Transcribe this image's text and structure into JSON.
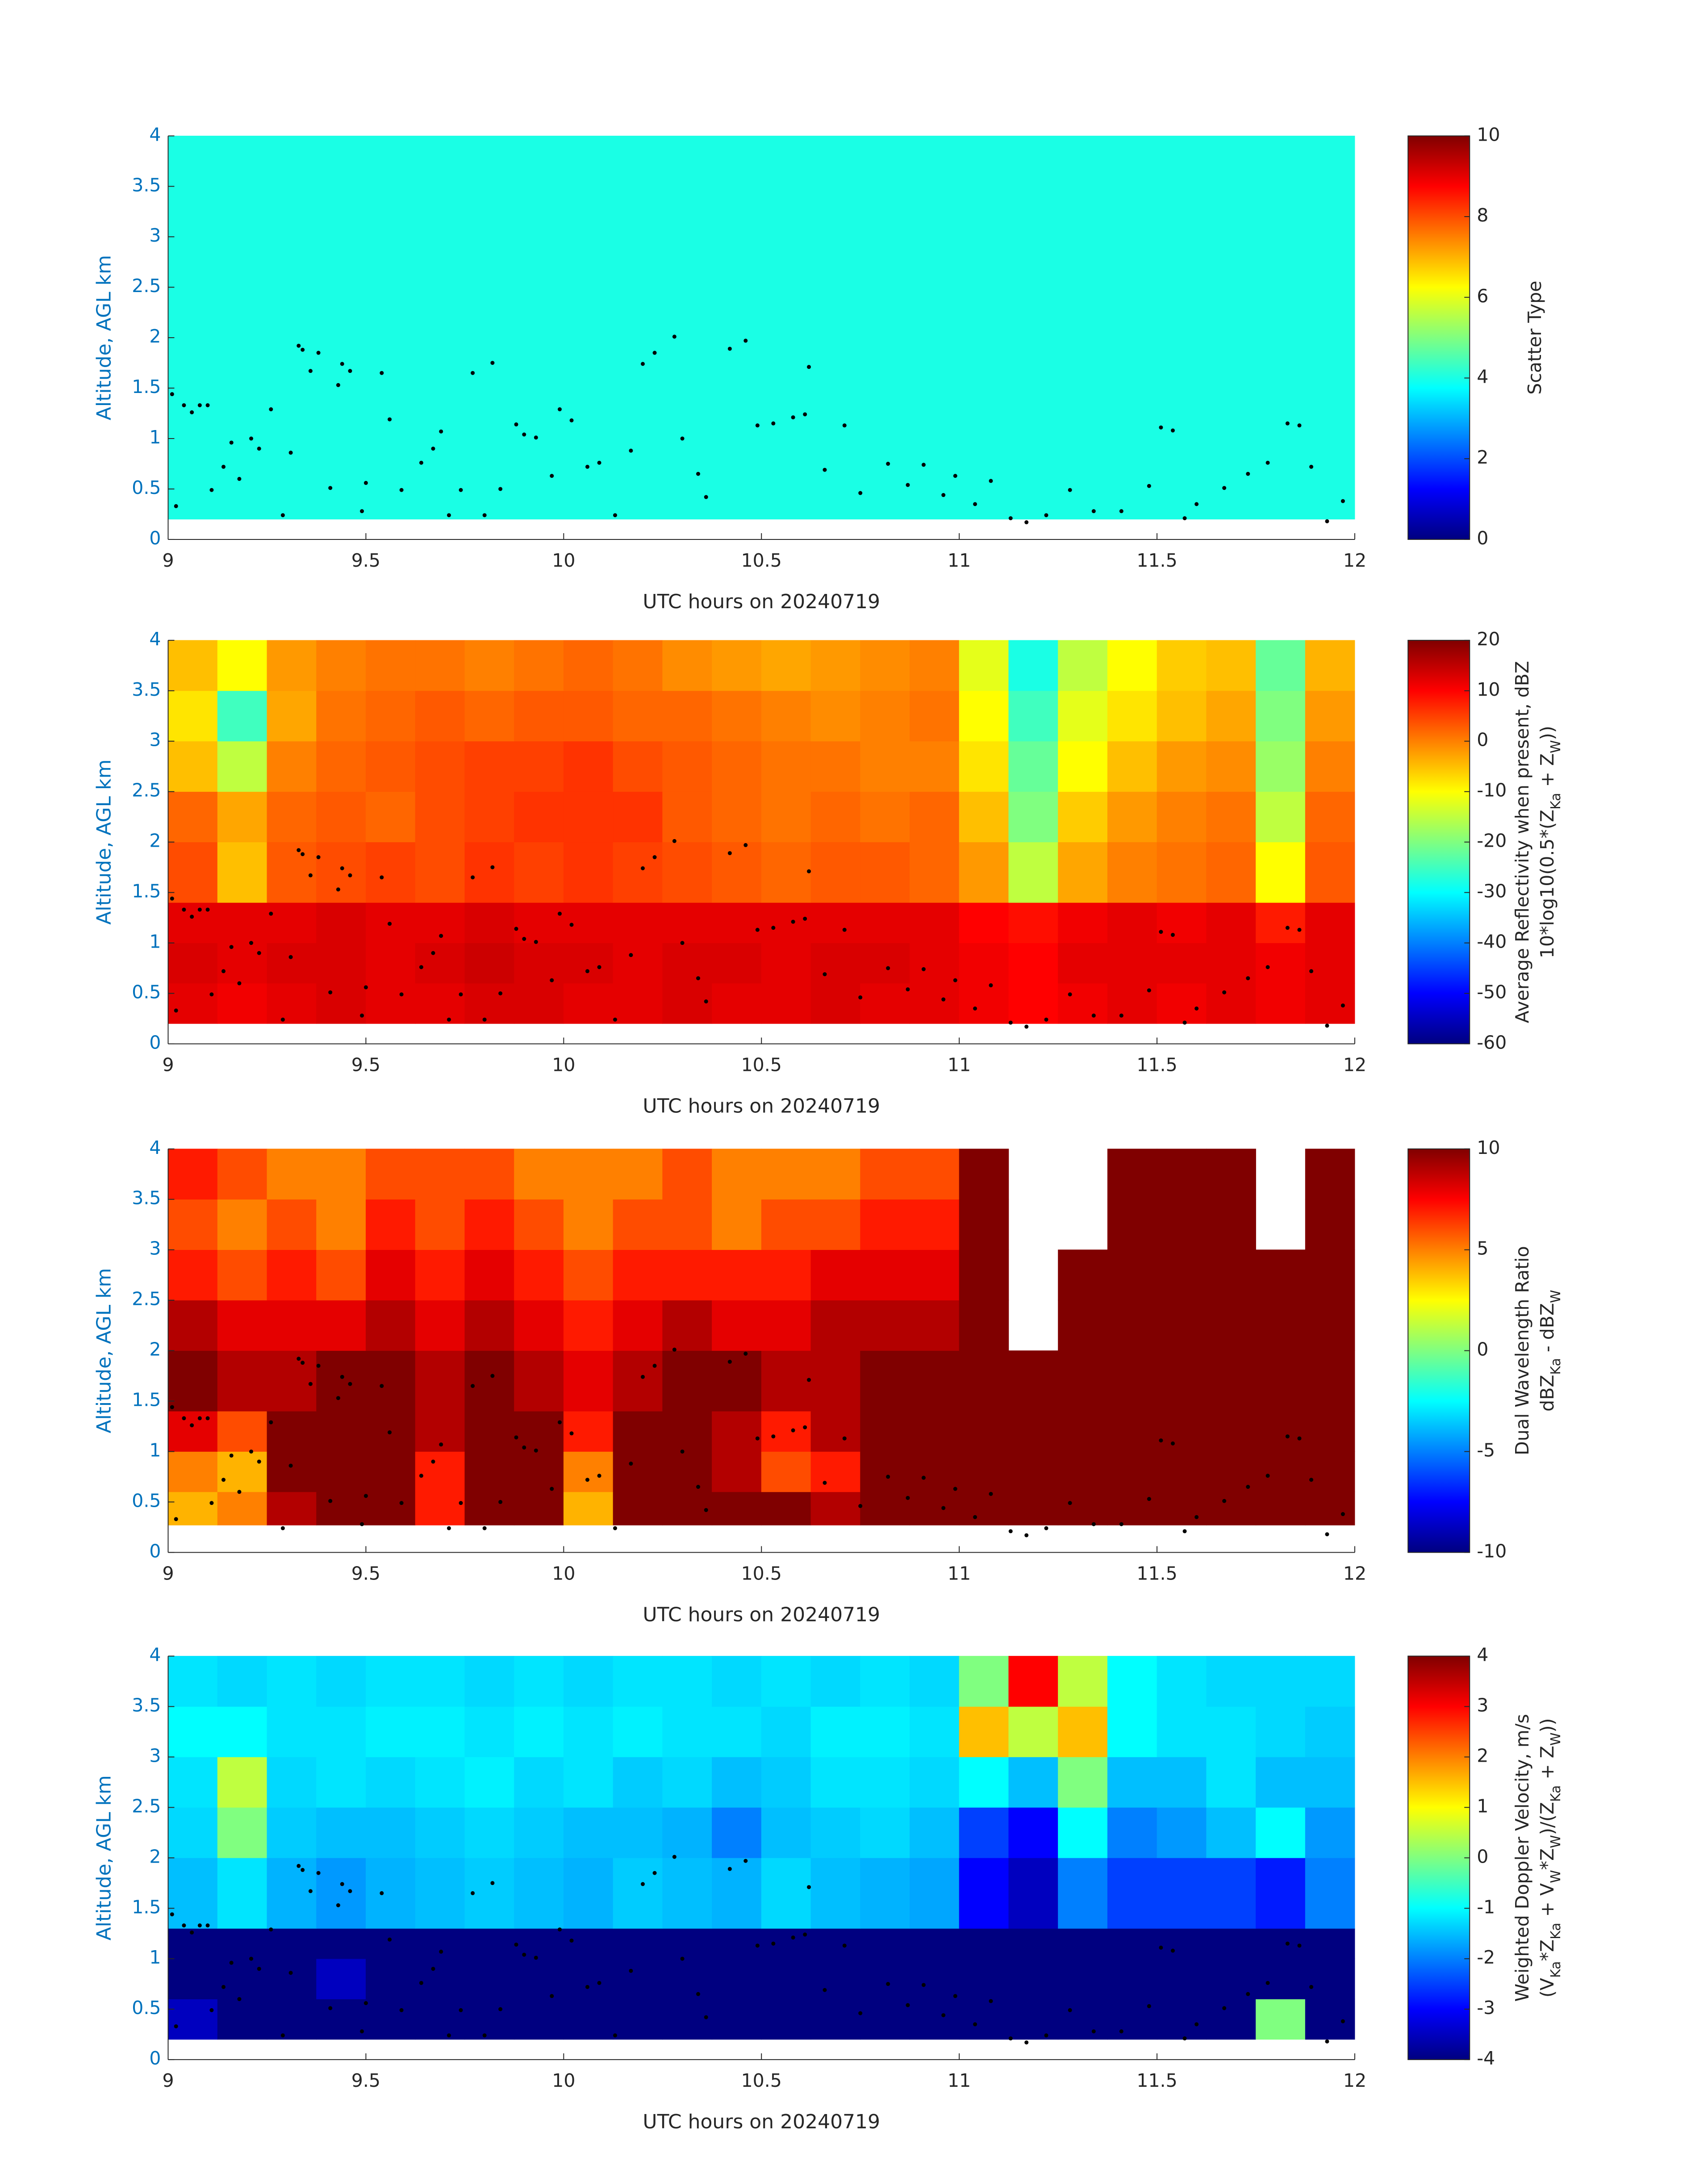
{
  "chart_data": [
    {
      "type": "heatmap",
      "xlabel": "UTC hours on 20240719",
      "ylabel": "Altitude, AGL km",
      "xlim": [
        9,
        12
      ],
      "ylim": [
        0,
        4
      ],
      "xticks": [
        9,
        9.5,
        10,
        10.5,
        11,
        11.5,
        12
      ],
      "yticks": [
        0,
        0.5,
        1,
        1.5,
        2,
        2.5,
        3,
        3.5,
        4
      ],
      "xbins": [
        9,
        12
      ],
      "ybins": [
        0.2,
        4
      ],
      "values": [
        [
          4
        ]
      ],
      "colormap": "jet",
      "clim": [
        0,
        10
      ],
      "cticks": [
        0,
        2,
        4,
        6,
        8,
        10
      ],
      "colorbar_label": [
        [
          {
            "text": "Scatter Type"
          }
        ]
      ],
      "points": {
        "color": "#000000",
        "x": [
          9.01,
          9.02,
          9.04,
          9.06,
          9.08,
          9.1,
          9.11,
          9.14,
          9.16,
          9.18,
          9.21,
          9.23,
          9.26,
          9.29,
          9.31,
          9.33,
          9.34,
          9.36,
          9.38,
          9.41,
          9.43,
          9.44,
          9.46,
          9.49,
          9.5,
          9.54,
          9.56,
          9.59,
          9.64,
          9.67,
          9.69,
          9.71,
          9.74,
          9.77,
          9.8,
          9.82,
          9.84,
          9.88,
          9.9,
          9.93,
          9.97,
          9.99,
          10.02,
          10.06,
          10.09,
          10.13,
          10.17,
          10.2,
          10.23,
          10.28,
          10.3,
          10.34,
          10.36,
          10.42,
          10.46,
          10.49,
          10.53,
          10.58,
          10.61,
          10.62,
          10.66,
          10.71,
          10.75,
          10.82,
          10.87,
          10.91,
          10.96,
          10.99,
          11.04,
          11.08,
          11.13,
          11.17,
          11.22,
          11.28,
          11.34,
          11.41,
          11.48,
          11.51,
          11.54,
          11.57,
          11.6,
          11.67,
          11.73,
          11.78,
          11.83,
          11.86,
          11.89,
          11.93,
          11.97
        ],
        "y": [
          1.44,
          0.33,
          1.33,
          1.26,
          1.33,
          1.33,
          0.49,
          0.72,
          0.96,
          0.6,
          1.0,
          0.9,
          1.29,
          0.24,
          0.86,
          1.92,
          1.88,
          1.67,
          1.85,
          0.51,
          1.53,
          1.74,
          1.67,
          0.28,
          0.56,
          1.65,
          1.19,
          0.49,
          0.76,
          0.9,
          1.07,
          0.24,
          0.49,
          1.65,
          0.24,
          1.75,
          0.5,
          1.14,
          1.04,
          1.01,
          0.63,
          1.29,
          1.18,
          0.72,
          0.76,
          0.24,
          0.88,
          1.74,
          1.85,
          2.01,
          1.0,
          0.65,
          0.42,
          1.89,
          1.97,
          1.13,
          1.15,
          1.21,
          1.24,
          1.71,
          0.69,
          1.13,
          0.46,
          0.75,
          0.54,
          0.74,
          0.44,
          0.63,
          0.35,
          0.58,
          0.21,
          0.17,
          0.24,
          0.49,
          0.28,
          0.28,
          0.53,
          1.11,
          1.08,
          0.21,
          0.35,
          0.51,
          0.65,
          0.76,
          1.15,
          1.13,
          0.72,
          0.18,
          0.38
        ]
      }
    },
    {
      "type": "heatmap",
      "xlabel": "UTC hours on 20240719",
      "ylabel": "Altitude, AGL km",
      "xlim": [
        9,
        12
      ],
      "ylim": [
        0,
        4
      ],
      "xticks": [
        9,
        9.5,
        10,
        10.5,
        11,
        11.5,
        12
      ],
      "yticks": [
        0,
        0.5,
        1,
        1.5,
        2,
        2.5,
        3,
        3.5,
        4
      ],
      "xbins": [
        9,
        9.125,
        9.25,
        9.375,
        9.5,
        9.625,
        9.75,
        9.875,
        10,
        10.125,
        10.25,
        10.375,
        10.5,
        10.625,
        10.75,
        10.875,
        11,
        11.125,
        11.25,
        11.375,
        11.5,
        11.625,
        11.75,
        11.875,
        12
      ],
      "ybins": [
        0.2,
        0.6,
        1.0,
        1.4,
        2.0,
        2.5,
        3.0,
        3.5,
        4.0
      ],
      "values": [
        [
          12,
          11,
          12,
          13,
          12,
          12,
          13,
          13,
          12,
          12,
          13,
          12,
          12,
          13,
          12,
          12,
          11,
          10,
          11,
          12,
          11,
          12,
          11,
          12
        ],
        [
          13,
          12,
          13,
          13,
          12,
          13,
          14,
          13,
          13,
          12,
          13,
          13,
          12,
          13,
          13,
          12,
          11,
          10,
          12,
          12,
          12,
          12,
          11,
          12
        ],
        [
          12,
          12,
          12,
          13,
          12,
          12,
          13,
          12,
          12,
          12,
          12,
          12,
          12,
          12,
          12,
          12,
          10,
          9,
          11,
          12,
          11,
          12,
          8,
          12
        ],
        [
          4,
          -5,
          3,
          4,
          5,
          4,
          6,
          5,
          6,
          5,
          4,
          3,
          2,
          3,
          3,
          2,
          -2,
          -15,
          -3,
          0,
          1,
          2,
          -10,
          3
        ],
        [
          2,
          -3,
          2,
          3,
          2,
          4,
          5,
          6,
          6,
          6,
          3,
          2,
          1,
          2,
          1,
          2,
          -5,
          -20,
          -6,
          -2,
          0,
          1,
          -15,
          2
        ],
        [
          -5,
          -15,
          0,
          2,
          3,
          4,
          5,
          5,
          6,
          4,
          3,
          2,
          1,
          1,
          0,
          0,
          -8,
          -22,
          -10,
          -5,
          -2,
          -1,
          -18,
          0
        ],
        [
          -8,
          -25,
          -3,
          1,
          2,
          3,
          2,
          3,
          3,
          2,
          2,
          1,
          0,
          -1,
          0,
          1,
          -10,
          -25,
          -12,
          -8,
          -5,
          -3,
          -20,
          -2
        ],
        [
          -5,
          -10,
          -2,
          0,
          1,
          1,
          0,
          1,
          2,
          1,
          -1,
          -2,
          -3,
          -2,
          -1,
          0,
          -12,
          -28,
          -15,
          -10,
          -6,
          -5,
          -22,
          -4
        ]
      ],
      "colormap": "jet",
      "clim": [
        -60,
        20
      ],
      "cticks": [
        -60,
        -50,
        -40,
        -30,
        -20,
        -10,
        0,
        10,
        20
      ],
      "colorbar_label": [
        [
          {
            "text": "Average Reflectivity when present, dBZ"
          }
        ],
        [
          {
            "text": "10*log10(0.5*(Z"
          },
          {
            "text": "Ka",
            "sub": true
          },
          {
            "text": " + Z"
          },
          {
            "text": "W",
            "sub": true
          },
          {
            "text": "))"
          }
        ]
      ]
    },
    {
      "type": "heatmap",
      "xlabel": "UTC hours on 20240719",
      "ylabel": "Altitude, AGL km",
      "xlim": [
        9,
        12
      ],
      "ylim": [
        0,
        4
      ],
      "xticks": [
        9,
        9.5,
        10,
        10.5,
        11,
        11.5,
        12
      ],
      "yticks": [
        0,
        0.5,
        1,
        1.5,
        2,
        2.5,
        3,
        3.5,
        4
      ],
      "xbins": [
        9,
        9.125,
        9.25,
        9.375,
        9.5,
        9.625,
        9.75,
        9.875,
        10,
        10.125,
        10.25,
        10.375,
        10.5,
        10.625,
        10.75,
        10.875,
        11,
        11.125,
        11.25,
        11.375,
        11.5,
        11.625,
        11.75,
        11.875,
        12
      ],
      "ybins": [
        0.27,
        0.6,
        1.0,
        1.4,
        2.0,
        2.5,
        3.0,
        3.5,
        4.0
      ],
      "values": [
        [
          4,
          5,
          9,
          10,
          10,
          7,
          10,
          10,
          4,
          10,
          10,
          10,
          10,
          9,
          10,
          10,
          10,
          10,
          10,
          10,
          10,
          10,
          10,
          10
        ],
        [
          5,
          4,
          10,
          10,
          10,
          7,
          10,
          10,
          5,
          10,
          10,
          9,
          6,
          7,
          10,
          10,
          10,
          10,
          10,
          10,
          10,
          10,
          10,
          10
        ],
        [
          8,
          6,
          10,
          10,
          10,
          9,
          10,
          10,
          7,
          10,
          10,
          9,
          7,
          9,
          10,
          10,
          10,
          10,
          10,
          10,
          10,
          10,
          10,
          10
        ],
        [
          10,
          9,
          9,
          10,
          10,
          9,
          10,
          9,
          8,
          9,
          10,
          10,
          9,
          9,
          10,
          10,
          10,
          10,
          10,
          10,
          10,
          10,
          10,
          10
        ],
        [
          9,
          8,
          8,
          8,
          9,
          8,
          9,
          8,
          7,
          8,
          9,
          8,
          8,
          9,
          9,
          9,
          10,
          null,
          10,
          10,
          10,
          10,
          10,
          10
        ],
        [
          7,
          6,
          7,
          6,
          8,
          7,
          8,
          7,
          6,
          7,
          7,
          7,
          7,
          8,
          8,
          8,
          10,
          null,
          10,
          10,
          10,
          10,
          10,
          10
        ],
        [
          6,
          5,
          6,
          5,
          7,
          6,
          7,
          6,
          5,
          6,
          6,
          5,
          6,
          6,
          7,
          7,
          10,
          null,
          null,
          10,
          10,
          10,
          null,
          10
        ],
        [
          7,
          6,
          5,
          5,
          6,
          6,
          6,
          5,
          5,
          5,
          6,
          5,
          5,
          5,
          6,
          6,
          10,
          null,
          null,
          10,
          10,
          10,
          null,
          10
        ]
      ],
      "colormap": "jet",
      "clim": [
        -10,
        10
      ],
      "cticks": [
        -10,
        -5,
        0,
        5,
        10
      ],
      "colorbar_label": [
        [
          {
            "text": "Dual Wavelength Ratio"
          }
        ],
        [
          {
            "text": "dBZ"
          },
          {
            "text": "Ka",
            "sub": true
          },
          {
            "text": " - dBZ"
          },
          {
            "text": "W",
            "sub": true
          }
        ]
      ]
    },
    {
      "type": "heatmap",
      "xlabel": "UTC hours on 20240719",
      "ylabel": "Altitude, AGL km",
      "xlim": [
        9,
        12
      ],
      "ylim": [
        0,
        4
      ],
      "xticks": [
        9,
        9.5,
        10,
        10.5,
        11,
        11.5,
        12
      ],
      "yticks": [
        0,
        0.5,
        1,
        1.5,
        2,
        2.5,
        3,
        3.5,
        4
      ],
      "xbins": [
        9,
        9.125,
        9.25,
        9.375,
        9.5,
        9.625,
        9.75,
        9.875,
        10,
        10.125,
        10.25,
        10.375,
        10.5,
        10.625,
        10.75,
        10.875,
        11,
        11.125,
        11.25,
        11.375,
        11.5,
        11.625,
        11.75,
        11.875,
        12
      ],
      "ybins": [
        0.2,
        0.6,
        1.0,
        1.3,
        2.0,
        2.5,
        3.0,
        3.5,
        4.0
      ],
      "values": [
        [
          -3.5,
          -4,
          -4,
          -4,
          -4,
          -4,
          -4,
          -4,
          -4,
          -4,
          -4,
          -4,
          -4,
          -4,
          -4,
          -4,
          -4,
          -4,
          -4,
          -4,
          -4,
          -4,
          0,
          -4
        ],
        [
          -4,
          -4,
          -4,
          -3.5,
          -4,
          -4,
          -4,
          -4,
          -4,
          -4,
          -4,
          -4,
          -4,
          -4,
          -4,
          -4,
          -4,
          -4,
          -4,
          -4,
          -4,
          -4,
          -4,
          -4
        ],
        [
          -4,
          -4,
          -4,
          -4,
          -4,
          -4,
          -4,
          -4,
          -4,
          -4,
          -4,
          -4,
          -4,
          -4,
          -4,
          -4,
          -4,
          -4,
          -4,
          -4,
          -4,
          -4,
          -4,
          -4
        ],
        [
          -1.5,
          -1.2,
          -1.6,
          -1.8,
          -1.6,
          -1.5,
          -1.4,
          -1.5,
          -1.6,
          -1.4,
          -1.5,
          -1.6,
          -1.3,
          -1.5,
          -1.6,
          -1.7,
          -3,
          -3.5,
          -2,
          -2.5,
          -2.5,
          -2.5,
          -2.8,
          -2
        ],
        [
          -1.3,
          0,
          -1.4,
          -1.5,
          -1.5,
          -1.4,
          -1.3,
          -1.4,
          -1.5,
          -1.5,
          -1.6,
          -2,
          -1.5,
          -1.4,
          -1.3,
          -1.5,
          -2.5,
          -3,
          -1,
          -2,
          -1.8,
          -1.5,
          -1,
          -1.8
        ],
        [
          -1.2,
          0.5,
          -1.3,
          -1.2,
          -1.3,
          -1.2,
          -1.1,
          -1.3,
          -1.2,
          -1.4,
          -1.3,
          -1.5,
          -1.4,
          -1.2,
          -1.2,
          -1.3,
          -1,
          -1.5,
          0,
          -1.5,
          -1.5,
          -1.2,
          -1.5,
          -1.5
        ],
        [
          -1,
          -1,
          -1.2,
          -1.2,
          -1.1,
          -1.1,
          -1.2,
          -1.1,
          -1.2,
          -1.1,
          -1.2,
          -1.2,
          -1.3,
          -1.1,
          -1.1,
          -1.2,
          1.5,
          0.5,
          1.5,
          -1,
          -1.2,
          -1.2,
          -1.3,
          -1.4
        ],
        [
          -1.2,
          -1.3,
          -1.2,
          -1.3,
          -1.2,
          -1.2,
          -1.3,
          -1.2,
          -1.3,
          -1.2,
          -1.2,
          -1.3,
          -1.2,
          -1.3,
          -1.2,
          -1.3,
          0,
          3,
          0.5,
          -1,
          -1.2,
          -1.3,
          -1.3,
          -1.3
        ]
      ],
      "colormap": "jet",
      "clim": [
        -4,
        4
      ],
      "cticks": [
        -4,
        -3,
        -2,
        -1,
        0,
        1,
        2,
        3,
        4
      ],
      "colorbar_label": [
        [
          {
            "text": "Weighted Doppler Velocity, m/s"
          }
        ],
        [
          {
            "text": "(V"
          },
          {
            "text": "Ka",
            "sub": true
          },
          {
            "text": "*Z"
          },
          {
            "text": "Ka",
            "sub": true
          },
          {
            "text": " + V"
          },
          {
            "text": "W",
            "sub": true
          },
          {
            "text": "*Z"
          },
          {
            "text": "W",
            "sub": true
          },
          {
            "text": ")/(Z"
          },
          {
            "text": "Ka",
            "sub": true
          },
          {
            "text": " + Z"
          },
          {
            "text": "W",
            "sub": true
          },
          {
            "text": "))"
          }
        ]
      ]
    }
  ]
}
